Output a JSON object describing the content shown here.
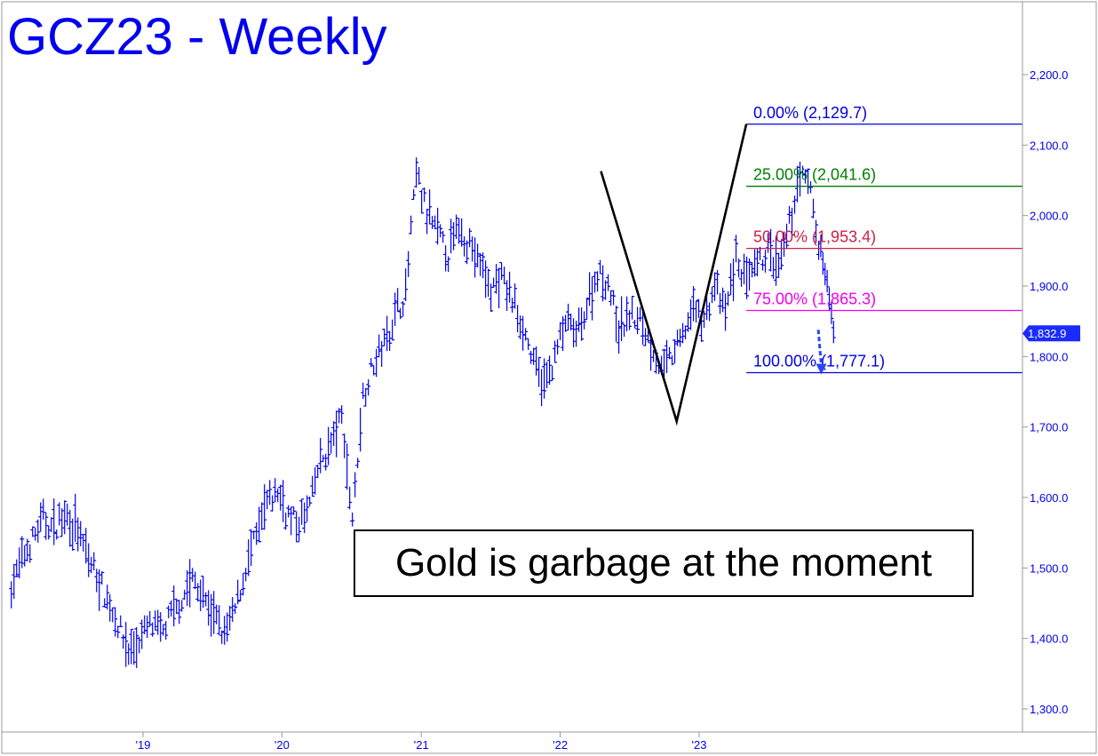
{
  "title": "GCZ23 - Weekly",
  "annotation": "Gold is garbage at the moment",
  "colors": {
    "bars": "#0000ee",
    "frame": "#9a9a9a",
    "fib_0": "#0000dd",
    "fib_25": "#008000",
    "fib_50": "#cc2244",
    "fib_75": "#ee00ee",
    "fib_100": "#0000dd",
    "pattern": "#000000",
    "last_price_tag": "#1a2bff"
  },
  "chart_data": {
    "type": "bar",
    "subtype": "ohlc-weekly",
    "y_axis": {
      "position": "right",
      "ylim": [
        1260,
        2320
      ],
      "ticks": [
        1300,
        1400,
        1500,
        1600,
        1700,
        1800,
        1900,
        2000,
        2100,
        2200
      ],
      "tick_labels": [
        "1,300.0",
        "1,400.0",
        "1,500.0",
        "1,600.0",
        "1,700.0",
        "1,800.0",
        "1,900.0",
        "2,000.0",
        "2,100.0",
        "2,200.0"
      ]
    },
    "x_axis": {
      "tick_labels": [
        "'19",
        "'20",
        "'21",
        "'22",
        "'23"
      ],
      "tick_dates": [
        "2019-01-01",
        "2020-01-01",
        "2021-01-01",
        "2022-01-01",
        "2023-01-01"
      ],
      "range": [
        "2018-01-20",
        "2023-12-31"
      ]
    },
    "last_price": {
      "value": 1832.9,
      "label": "1,832.9"
    },
    "fib_levels": [
      {
        "pct_label": "0.00%",
        "value": 2129.7,
        "value_label": "(2,129.7)",
        "color": "#0000dd"
      },
      {
        "pct_label": "25.00%",
        "value": 2041.6,
        "value_label": "(2,041.6)",
        "color": "#008000"
      },
      {
        "pct_label": "50.00%",
        "value": 1953.4,
        "value_label": "(1,953.4)",
        "color": "#cc2244"
      },
      {
        "pct_label": "75.00%",
        "value": 1865.3,
        "value_label": "(1,865.3)",
        "color": "#ee00ee"
      },
      {
        "pct_label": "100.00%",
        "value": 1777.1,
        "value_label": "(1,777.1)",
        "color": "#0000dd"
      }
    ],
    "fib_start_date": "2023-05-05",
    "pattern_path": [
      {
        "date": "2022-04-18",
        "value": 2063
      },
      {
        "date": "2022-11-03",
        "value": 1708
      },
      {
        "date": "2023-05-05",
        "value": 2129.7
      }
    ],
    "projection_arrow": {
      "from": {
        "date": "2023-11-10",
        "value": 1838
      },
      "to": {
        "date": "2023-11-18",
        "value": 1777.1
      }
    },
    "series": [
      {
        "date": "2018-01-20",
        "value": 1475
      },
      {
        "date": "2018-02-17",
        "value": 1510
      },
      {
        "date": "2018-03-17",
        "value": 1540
      },
      {
        "date": "2018-04-14",
        "value": 1568
      },
      {
        "date": "2018-05-12",
        "value": 1555
      },
      {
        "date": "2018-06-09",
        "value": 1578
      },
      {
        "date": "2018-07-07",
        "value": 1560
      },
      {
        "date": "2018-08-04",
        "value": 1520
      },
      {
        "date": "2018-09-01",
        "value": 1490
      },
      {
        "date": "2018-09-29",
        "value": 1455
      },
      {
        "date": "2018-10-27",
        "value": 1420
      },
      {
        "date": "2018-11-24",
        "value": 1382
      },
      {
        "date": "2018-12-22",
        "value": 1395
      },
      {
        "date": "2019-01-19",
        "value": 1420
      },
      {
        "date": "2019-02-16",
        "value": 1405
      },
      {
        "date": "2019-03-16",
        "value": 1432
      },
      {
        "date": "2019-04-13",
        "value": 1455
      },
      {
        "date": "2019-05-11",
        "value": 1485
      },
      {
        "date": "2019-06-08",
        "value": 1460
      },
      {
        "date": "2019-07-06",
        "value": 1430
      },
      {
        "date": "2019-08-03",
        "value": 1405
      },
      {
        "date": "2019-08-31",
        "value": 1440
      },
      {
        "date": "2019-09-28",
        "value": 1500
      },
      {
        "date": "2019-10-26",
        "value": 1545
      },
      {
        "date": "2019-11-23",
        "value": 1590
      },
      {
        "date": "2019-12-21",
        "value": 1610
      },
      {
        "date": "2020-01-18",
        "value": 1575
      },
      {
        "date": "2020-02-15",
        "value": 1560
      },
      {
        "date": "2020-03-14",
        "value": 1590
      },
      {
        "date": "2020-04-11",
        "value": 1650
      },
      {
        "date": "2020-05-09",
        "value": 1675
      },
      {
        "date": "2020-06-06",
        "value": 1715
      },
      {
        "date": "2020-07-04",
        "value": 1570
      },
      {
        "date": "2020-08-01",
        "value": 1745
      },
      {
        "date": "2020-08-29",
        "value": 1790
      },
      {
        "date": "2020-09-26",
        "value": 1820
      },
      {
        "date": "2020-10-24",
        "value": 1860
      },
      {
        "date": "2020-11-21",
        "value": 1890
      },
      {
        "date": "2020-12-19",
        "value": 2060
      },
      {
        "date": "2021-01-16",
        "value": 2000
      },
      {
        "date": "2021-02-13",
        "value": 1975
      },
      {
        "date": "2021-03-13",
        "value": 1945
      },
      {
        "date": "2021-04-10",
        "value": 1985
      },
      {
        "date": "2021-05-08",
        "value": 1960
      },
      {
        "date": "2021-06-05",
        "value": 1930
      },
      {
        "date": "2021-07-03",
        "value": 1895
      },
      {
        "date": "2021-07-31",
        "value": 1910
      },
      {
        "date": "2021-08-28",
        "value": 1880
      },
      {
        "date": "2021-09-25",
        "value": 1845
      },
      {
        "date": "2021-10-23",
        "value": 1790
      },
      {
        "date": "2021-11-20",
        "value": 1760
      },
      {
        "date": "2021-12-18",
        "value": 1800
      },
      {
        "date": "2022-01-15",
        "value": 1850
      },
      {
        "date": "2022-02-12",
        "value": 1830
      },
      {
        "date": "2022-03-12",
        "value": 1870
      },
      {
        "date": "2022-04-09",
        "value": 1920
      },
      {
        "date": "2022-05-07",
        "value": 1905
      },
      {
        "date": "2022-06-04",
        "value": 1835
      },
      {
        "date": "2022-07-02",
        "value": 1860
      },
      {
        "date": "2022-07-30",
        "value": 1850
      },
      {
        "date": "2022-08-27",
        "value": 1820
      },
      {
        "date": "2022-09-24",
        "value": 1780
      },
      {
        "date": "2022-10-22",
        "value": 1800
      },
      {
        "date": "2022-11-19",
        "value": 1830
      },
      {
        "date": "2022-12-17",
        "value": 1870
      },
      {
        "date": "2023-01-14",
        "value": 1850
      },
      {
        "date": "2023-02-11",
        "value": 1900
      },
      {
        "date": "2023-03-11",
        "value": 1860
      },
      {
        "date": "2023-04-08",
        "value": 1940
      },
      {
        "date": "2023-05-06",
        "value": 1905
      },
      {
        "date": "2023-06-03",
        "value": 1925
      },
      {
        "date": "2023-07-01",
        "value": 1950
      },
      {
        "date": "2023-07-29",
        "value": 1920
      },
      {
        "date": "2023-08-26",
        "value": 1985
      },
      {
        "date": "2023-09-23",
        "value": 2060
      },
      {
        "date": "2023-10-21",
        "value": 2040
      },
      {
        "date": "2023-11-18",
        "value": 1930
      },
      {
        "date": "2023-12-16",
        "value": 1905
      }
    ]
  }
}
